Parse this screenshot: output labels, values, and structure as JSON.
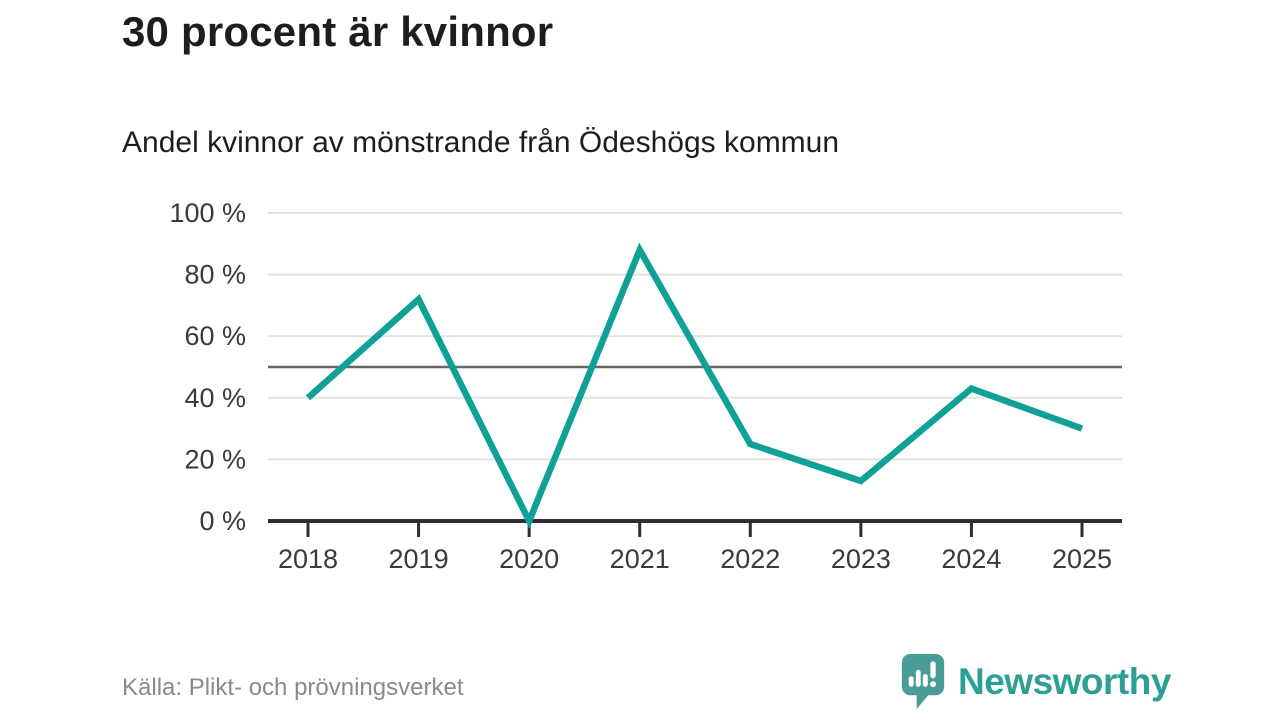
{
  "header": {
    "title": "30 procent är kvinnor",
    "subtitle": "Andel kvinnor av mönstrande från Ödeshögs kommun"
  },
  "chart_data": {
    "type": "line",
    "title": "30 procent är kvinnor",
    "subtitle": "Andel kvinnor av mönstrande från Ödeshögs kommun",
    "categories": [
      "2018",
      "2019",
      "2020",
      "2021",
      "2022",
      "2023",
      "2024",
      "2025"
    ],
    "values": [
      40,
      72,
      0,
      88,
      25,
      13,
      43,
      30
    ],
    "unit": "%",
    "ylim": [
      0,
      100
    ],
    "yticks": [
      0,
      20,
      40,
      60,
      80,
      100
    ],
    "ytick_labels": [
      "0 %",
      "20 %",
      "40 %",
      "60 %",
      "80 %",
      "100 %"
    ],
    "reference_line": 50,
    "grid": true,
    "legend": "none",
    "colors": {
      "line": "#0FA196",
      "reference": "#666666",
      "axis": "#2e2e2e",
      "grid": "#e2e2e2",
      "tick_label": "#3a3a3a"
    }
  },
  "footer": {
    "source": "Källa: Plikt- och prövningsverket",
    "brand": "Newsworthy",
    "brand_color": "#2d9f97",
    "logo_bubble_color": "#4a9d96"
  }
}
